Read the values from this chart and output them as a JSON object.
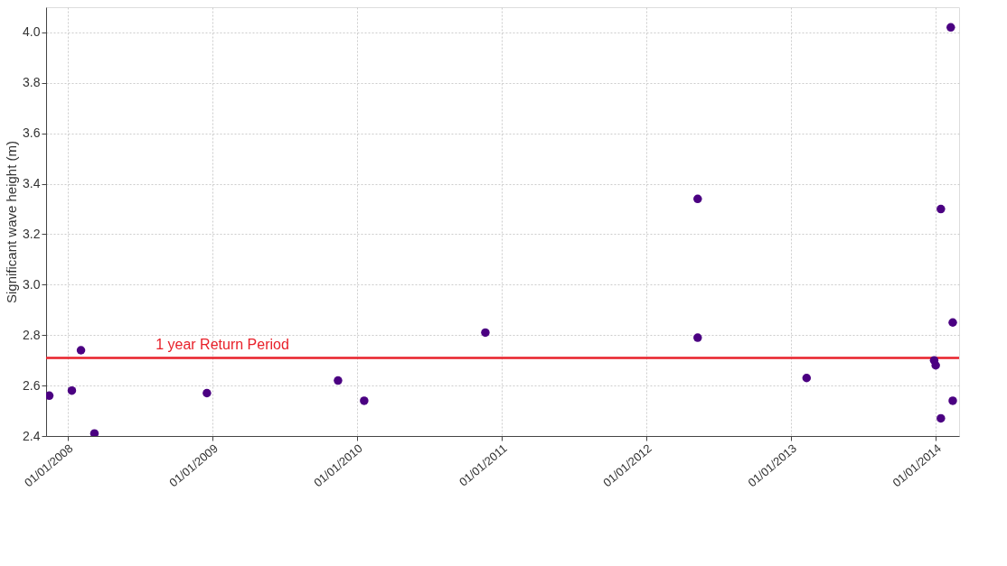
{
  "chart_data": {
    "type": "scatter",
    "ylabel": "Significant wave height (m)",
    "x": [
      "2007-11-16",
      "2008-01-12",
      "2008-02-04",
      "2008-03-09",
      "2008-12-18",
      "2009-11-14",
      "2010-01-19",
      "2010-11-21",
      "2012-05-10",
      "2012-05-10",
      "2013-02-09",
      "2013-12-28",
      "2014-01-01",
      "2014-01-14",
      "2014-01-14",
      "2014-02-08",
      "2014-02-13",
      "2014-02-13"
    ],
    "series": [
      {
        "color": "#4b0082",
        "values": [
          2.56,
          2.58,
          2.74,
          2.41,
          2.57,
          2.62,
          2.54,
          2.81,
          3.34,
          2.79,
          2.63,
          2.7,
          2.68,
          3.3,
          2.47,
          4.02,
          2.85,
          2.54
        ]
      }
    ],
    "xlim": [
      "2007-11-08",
      "2014-03-01"
    ],
    "xticks": [
      {
        "value": "2008-01-01",
        "label": "01/01/2008"
      },
      {
        "value": "2009-01-01",
        "label": "01/01/2009"
      },
      {
        "value": "2010-01-01",
        "label": "01/01/2010"
      },
      {
        "value": "2011-01-01",
        "label": "01/01/2011"
      },
      {
        "value": "2012-01-01",
        "label": "01/01/2012"
      },
      {
        "value": "2013-01-01",
        "label": "01/01/2013"
      },
      {
        "value": "2014-01-01",
        "label": "01/01/2014"
      }
    ],
    "ylim": [
      2.4,
      4.1
    ],
    "yticks": [
      {
        "value": 2.4,
        "label": "2.4"
      },
      {
        "value": 2.6,
        "label": "2.6"
      },
      {
        "value": 2.8,
        "label": "2.8"
      },
      {
        "value": 3.0,
        "label": "3.0"
      },
      {
        "value": 3.2,
        "label": "3.2"
      },
      {
        "value": 3.4,
        "label": "3.4"
      },
      {
        "value": 3.6,
        "label": "3.6"
      },
      {
        "value": 3.8,
        "label": "3.8"
      },
      {
        "value": 4.0,
        "label": "4.0"
      }
    ],
    "ref_lines": [
      {
        "axis": "y",
        "value": 2.71,
        "label": "1 year Return Period",
        "color": "#e8202a"
      }
    ],
    "grid": true,
    "marker": "circle",
    "legend": false
  }
}
